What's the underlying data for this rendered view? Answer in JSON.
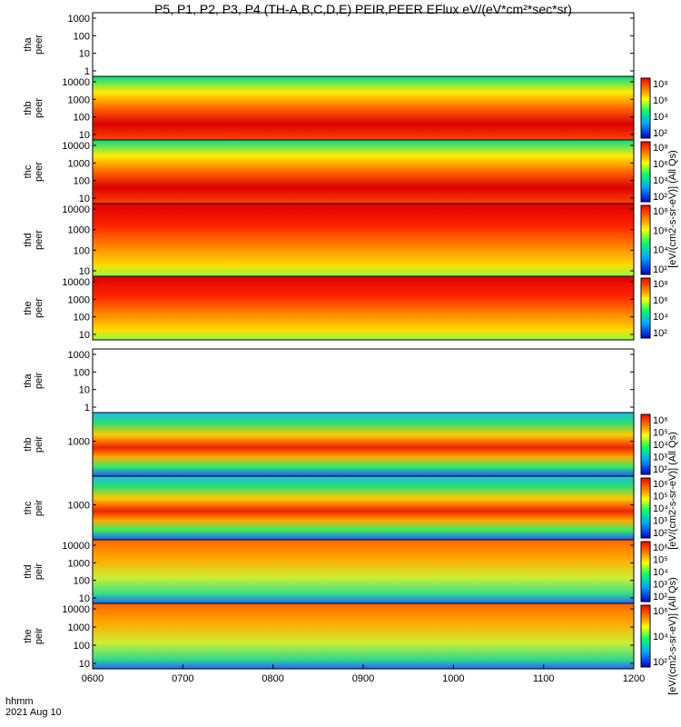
{
  "title": "P5, P1, P2, P3, P4 (TH-A,B,C,D,E) PEIR,PEER EFlux eV/(eV*cm²*sec*sr)",
  "footer": {
    "label1": "hhmm",
    "label2": "2021 Aug 10"
  },
  "colors": {
    "low": "#0000ff",
    "mid": "#00ff00",
    "high": "#ff0000",
    "fill": "#000000",
    "axis": "#000000"
  },
  "chart_data": {
    "type": "heatmap",
    "x_ticks": [
      "0600",
      "0700",
      "0800",
      "0900",
      "1000",
      "1100",
      "1200"
    ],
    "x_range": [
      "0600",
      "1200"
    ],
    "panels": [
      {
        "id": "tha-peer",
        "ylabel": [
          "tha",
          "peer"
        ],
        "yticks": [
          "1000",
          "100",
          "10",
          "1"
        ],
        "empty": true,
        "colorbar": false
      },
      {
        "id": "thb-peer",
        "ylabel": [
          "thb",
          "peer"
        ],
        "yticks": [
          "10000",
          "1000",
          "100",
          "10"
        ],
        "empty": false,
        "colorbar": true,
        "cbar_ticks": [
          "10⁸",
          "10⁶",
          "10⁴",
          "10²"
        ]
      },
      {
        "id": "thc-peer",
        "ylabel": [
          "thc",
          "peer"
        ],
        "yticks": [
          "10000",
          "1000",
          "100",
          "10"
        ],
        "empty": false,
        "colorbar": true,
        "cbar_ticks": [
          "10⁸",
          "10⁶",
          "10⁴",
          "10²"
        ]
      },
      {
        "id": "thd-peer",
        "ylabel": [
          "thd",
          "peer"
        ],
        "yticks": [
          "10000",
          "1000",
          "100",
          "10"
        ],
        "empty": false,
        "colorbar": true,
        "cbar_ticks": [
          "10⁸",
          "10⁶",
          "10⁴",
          "10²"
        ]
      },
      {
        "id": "the-peer",
        "ylabel": [
          "the",
          "peer"
        ],
        "yticks": [
          "10000",
          "1000",
          "100",
          "10"
        ],
        "empty": false,
        "colorbar": true,
        "cbar_ticks": [
          "10⁸",
          "10⁶",
          "10⁴",
          "10²"
        ]
      },
      {
        "id": "tha-peir",
        "ylabel": [
          "tha",
          "peir"
        ],
        "yticks": [
          "1000",
          "100",
          "10",
          "1"
        ],
        "empty": true,
        "colorbar": false
      },
      {
        "id": "thb-peir",
        "ylabel": [
          "thb",
          "peir"
        ],
        "yticks": [
          "1000"
        ],
        "empty": false,
        "colorbar": true,
        "cbar_ticks": [
          "10⁶",
          "10⁵",
          "10⁴",
          "10³",
          "10²"
        ]
      },
      {
        "id": "thc-peir",
        "ylabel": [
          "thc",
          "peir"
        ],
        "yticks": [
          "1000"
        ],
        "empty": false,
        "colorbar": true,
        "cbar_ticks": [
          "10⁶",
          "10⁵",
          "10⁴",
          "10³",
          "10²"
        ]
      },
      {
        "id": "thd-peir",
        "ylabel": [
          "thd",
          "peir"
        ],
        "yticks": [
          "10000",
          "1000",
          "100",
          "10"
        ],
        "empty": false,
        "colorbar": true,
        "cbar_ticks": [
          "10⁶",
          "10⁵",
          "10⁴",
          "10³",
          "10²"
        ]
      },
      {
        "id": "the-peir",
        "ylabel": [
          "the",
          "peir"
        ],
        "yticks": [
          "10000",
          "1000",
          "100",
          "10"
        ],
        "empty": false,
        "colorbar": true,
        "cbar_ticks": [
          "10⁶",
          "10⁴",
          "10²"
        ]
      }
    ],
    "colorbar_units": [
      "[eV/(cm2-s-sr-eV)] (All Qs)",
      "[eV/(cm2-s-sr-eV)] (All Qs)",
      "[eV/(cm2-s-sr-eV)] (All Qs)"
    ]
  }
}
